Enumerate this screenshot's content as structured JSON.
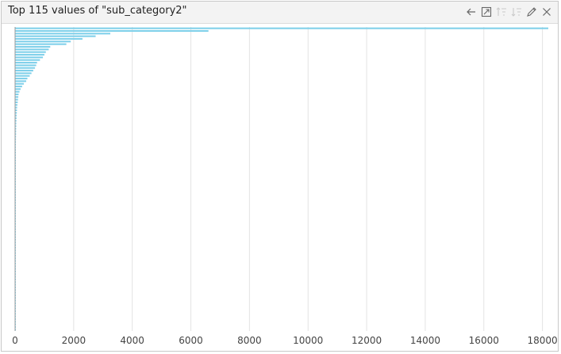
{
  "window": {
    "title": "Top 115 values of \"sub_category2\"",
    "tools": [
      {
        "name": "back-arrow-icon",
        "enabled": true
      },
      {
        "name": "expand-icon",
        "enabled": true
      },
      {
        "name": "sort-ascending-icon",
        "enabled": false
      },
      {
        "name": "sort-descending-icon",
        "enabled": false
      },
      {
        "name": "edit-pencil-icon",
        "enabled": true
      },
      {
        "name": "close-icon",
        "enabled": true
      }
    ]
  },
  "colors": {
    "bar": "#7fd0ea",
    "grid": "#e3e3e3",
    "axis_line": "#9a9a9a",
    "text": "#444444"
  },
  "chart_data": {
    "type": "bar",
    "orientation": "horizontal",
    "title": "Top 115 values of \"sub_category2\"",
    "xlabel": "",
    "ylabel": "",
    "xlim": [
      0,
      18200
    ],
    "xticks": [
      0,
      2000,
      4000,
      6000,
      8000,
      10000,
      12000,
      14000,
      16000,
      18000
    ],
    "grid": true,
    "values": [
      18200,
      6600,
      3250,
      2750,
      2300,
      1900,
      1750,
      1200,
      1150,
      1050,
      1000,
      950,
      850,
      750,
      720,
      680,
      620,
      560,
      500,
      420,
      380,
      300,
      240,
      190,
      150,
      120,
      110,
      100,
      90,
      80,
      70,
      65,
      60,
      55,
      50,
      46,
      42,
      40,
      38,
      36,
      34,
      32,
      30,
      29,
      28,
      27,
      26,
      25,
      24,
      23,
      22,
      21,
      20,
      19,
      18,
      17,
      16,
      15,
      15,
      14,
      14,
      13,
      13,
      12,
      12,
      11,
      11,
      10,
      10,
      9,
      9,
      9,
      8,
      8,
      8,
      7,
      7,
      7,
      6,
      6,
      6,
      6,
      5,
      5,
      5,
      5,
      5,
      4,
      4,
      4,
      4,
      4,
      3,
      3,
      3,
      3,
      3,
      3,
      2,
      2,
      2,
      2,
      2,
      2,
      2,
      2,
      1,
      1,
      1,
      1,
      1,
      1,
      1,
      1,
      1
    ]
  }
}
